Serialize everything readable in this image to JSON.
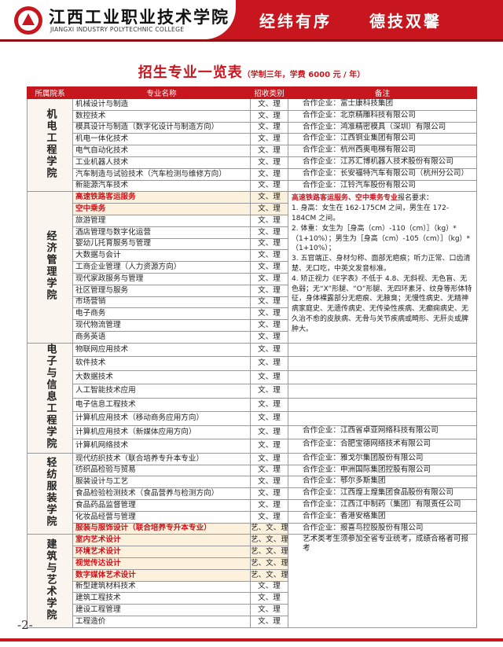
{
  "header": {
    "school_name": "江西工业职业技术学院",
    "school_name_en": "JIANGXI INDUSTRY POLYTECHNIC COLLEGE",
    "slogan": [
      "经纬有序",
      "德技双馨"
    ]
  },
  "title": "招生专业一览表",
  "subtitle": "（学制三年，学费 6000 元 / 年）",
  "table": {
    "columns": [
      "所属院系",
      "专业名称",
      "招收类别",
      "备注"
    ],
    "groups": [
      {
        "department": "机电工程学院",
        "rows": [
          {
            "name": "机械设计与制造",
            "category": "文、理",
            "note": "合作企业：富士康科技集团"
          },
          {
            "name": "数控技术",
            "category": "文、理",
            "note": "合作企业：北京精雕科技有限公司"
          },
          {
            "name": "模具设计与制造（数字化设计与制造方向）",
            "category": "文、理",
            "note": "合作企业：鸿准精密模具（深圳）有限公司"
          },
          {
            "name": "机电一体化技术",
            "category": "文、理",
            "note": "合作企业：江西铜业集团有限公司"
          },
          {
            "name": "电气自动化技术",
            "category": "文、理",
            "note": "合作企业：杭州西奥电梯有限公司"
          },
          {
            "name": "工业机器人技术",
            "category": "文、理",
            "note": "合作企业：江苏汇博机器人技术股份有限公司"
          },
          {
            "name": "汽车制造与试验技术（汽车检测与维修方向）",
            "category": "文、理",
            "note": "合作企业：长安福特汽车有限公司（杭州分公司）"
          },
          {
            "name": "新能源汽车技术",
            "category": "文、理",
            "note": "合作企业：江铃汽车股份有限公司"
          }
        ]
      },
      {
        "department": "经济管理学院",
        "rows": [
          {
            "name": "高速铁路客运服务",
            "category": "文、理",
            "emphasis": true,
            "note": {
              "highlight": "高速铁路客运服务、空中乘务专业",
              "text": "报名要求：",
              "items": [
                "1. 身高：女生在 162-175CM 之间，男生在 172-184CM 之间。",
                "2. 体重：女生为［身高（cm）-110（cm）］（kg）*（1+10%）；男生为［身高（cm）-105（cm）］（kg）*（1+10%）；",
                "3. 五官端正、身材匀称、面部无疤痕；听力正常、口齿清楚、无口吃，中英文发音标准。",
                "4. 矫正视力《E字表》不低于 4.8、无斜视、无色盲、无色弱；无“X”形腿、“O”形腿、无四环素牙、纹身等形体特征，身体裸露部分无疤痕、无腋臭；无慢性病史、无精神病家庭史、无遗传病史、无传染性疾病、无癫痫病史、无久治不愈的皮肤病、无骨与关节疾病或畸形、无肝炎或脾肿大。"
              ]
            }
          },
          {
            "name": "空中乘务",
            "category": "文、理",
            "emphasis": true
          },
          {
            "name": "旅游管理",
            "category": "文、理"
          },
          {
            "name": "酒店管理与数字化运营",
            "category": "文、理"
          },
          {
            "name": "婴幼儿托育服务与管理",
            "category": "文、理"
          },
          {
            "name": "大数据与会计",
            "category": "文、理"
          },
          {
            "name": "工商企业管理（人力资源方向）",
            "category": "文、理"
          },
          {
            "name": "现代家政服务与管理",
            "category": "文、理"
          },
          {
            "name": "社区管理与服务",
            "category": "文、理"
          },
          {
            "name": "市场营销",
            "category": "文、理"
          },
          {
            "name": "电子商务",
            "category": "文、理"
          },
          {
            "name": "现代物流管理",
            "category": "文、理"
          },
          {
            "name": "商务英语",
            "category": "文、理"
          }
        ]
      },
      {
        "department": "电子与信息工程学院",
        "rows": [
          {
            "name": "物联网应用技术",
            "category": "文、理"
          },
          {
            "name": "软件技术",
            "category": "文、理"
          },
          {
            "name": "大数据技术",
            "category": "文、理"
          },
          {
            "name": "人工智能技术应用",
            "category": "文、理"
          },
          {
            "name": "电子信息工程技术",
            "category": "文、理"
          },
          {
            "name": "计算机应用技术（移动商务应用方向）",
            "category": "文、理"
          },
          {
            "name": "计算机应用技术（新媒体应用方向）",
            "category": "文、理",
            "note": "合作企业：江西省卓亚网络科技有限公司"
          },
          {
            "name": "计算机网络技术",
            "category": "文、理",
            "note": "合作企业：合肥宝德网络技术有限公司"
          }
        ]
      },
      {
        "department": "轻纺服装学院",
        "rows": [
          {
            "name": "现代纺织技术（联合培养专升本专业）",
            "category": "文、理",
            "note": "合作企业：雅戈尔集团股份有限公司"
          },
          {
            "name": "纺织品检验与贸易",
            "category": "文、理",
            "note": "合作企业：申洲国际集团控股有限公司"
          },
          {
            "name": "服装设计与工艺",
            "category": "文、理",
            "note": "合作企业：鄂尔多斯集团"
          },
          {
            "name": "食品检验检测技术（食品营养与检测方向）",
            "category": "文、理",
            "note": "合作企业：江西煌上煌集团食品股份有限公司"
          },
          {
            "name": "食品药品监督管理",
            "category": "文、理",
            "note": "合作企业：江西江中制药（集团）有限责任公司"
          },
          {
            "name": "化妆品经营与管理",
            "category": "文、理",
            "note": "合作企业：香港安格集团"
          },
          {
            "name": "服装与服饰设计（联合培养专升本专业）",
            "category": "艺、文、理",
            "emphasis": true,
            "note": "合作企业：报喜鸟控股股份有限公司"
          }
        ]
      },
      {
        "department": "建筑与艺术学院",
        "rows": [
          {
            "name": "室内艺术设计",
            "category": "艺、文、理",
            "emphasis": true,
            "note": "艺术类考生须参加全省专业统考，成绩合格者可报考"
          },
          {
            "name": "环境艺术设计",
            "category": "艺、文、理",
            "emphasis": true
          },
          {
            "name": "视觉传达设计",
            "category": "艺、文、理",
            "emphasis": true
          },
          {
            "name": "数字媒体艺术设计",
            "category": "艺、文、理",
            "emphasis": true
          },
          {
            "name": "新型建筑材料技术",
            "category": "文、理"
          },
          {
            "name": "建筑工程技术",
            "category": "文、理"
          },
          {
            "name": "建设工程管理",
            "category": "文、理"
          },
          {
            "name": "工程造价",
            "category": "文、理"
          }
        ]
      }
    ]
  },
  "page_number": "-2-"
}
